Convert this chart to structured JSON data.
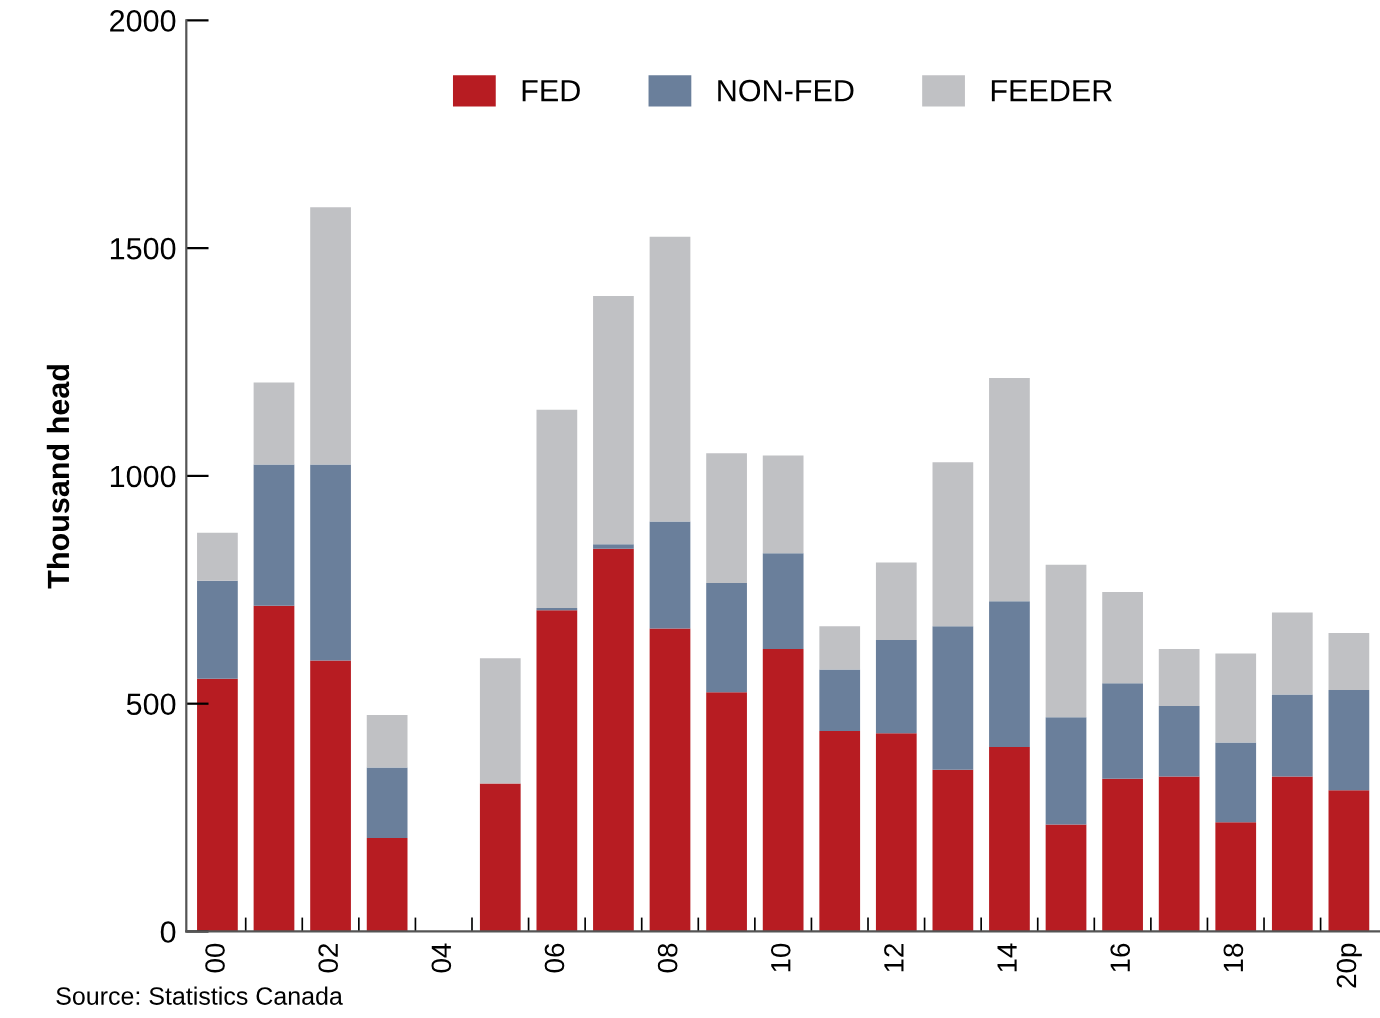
{
  "chart_data": {
    "type": "bar",
    "stacked": true,
    "ylabel": "Thousand head",
    "categories": [
      "00",
      null,
      "02",
      null,
      "04",
      null,
      "06",
      null,
      "08",
      null,
      "10",
      null,
      "12",
      null,
      "14",
      null,
      "16",
      null,
      "18",
      null,
      "20p"
    ],
    "series": [
      {
        "name": "FED",
        "color": "#b71c22",
        "values": [
          555,
          715,
          595,
          205,
          0,
          325,
          705,
          840,
          665,
          525,
          620,
          440,
          435,
          355,
          405,
          235,
          335,
          340,
          240,
          340,
          310
        ]
      },
      {
        "name": "NON-FED",
        "color": "#6a7f9b",
        "values": [
          215,
          310,
          430,
          155,
          0,
          0,
          5,
          10,
          235,
          240,
          210,
          135,
          205,
          315,
          320,
          235,
          210,
          155,
          175,
          180,
          220
        ]
      },
      {
        "name": "FEEDER",
        "color": "#c0c1c4",
        "values": [
          105,
          180,
          565,
          115,
          0,
          275,
          435,
          545,
          625,
          285,
          215,
          95,
          170,
          360,
          490,
          335,
          200,
          125,
          195,
          180,
          125
        ]
      }
    ],
    "ylim": [
      0,
      2000
    ],
    "yticks": [
      0,
      500,
      1000,
      1500,
      2000
    ],
    "grid": false,
    "legend": "top",
    "annotations": [
      "Source: Statistics Canada"
    ]
  }
}
